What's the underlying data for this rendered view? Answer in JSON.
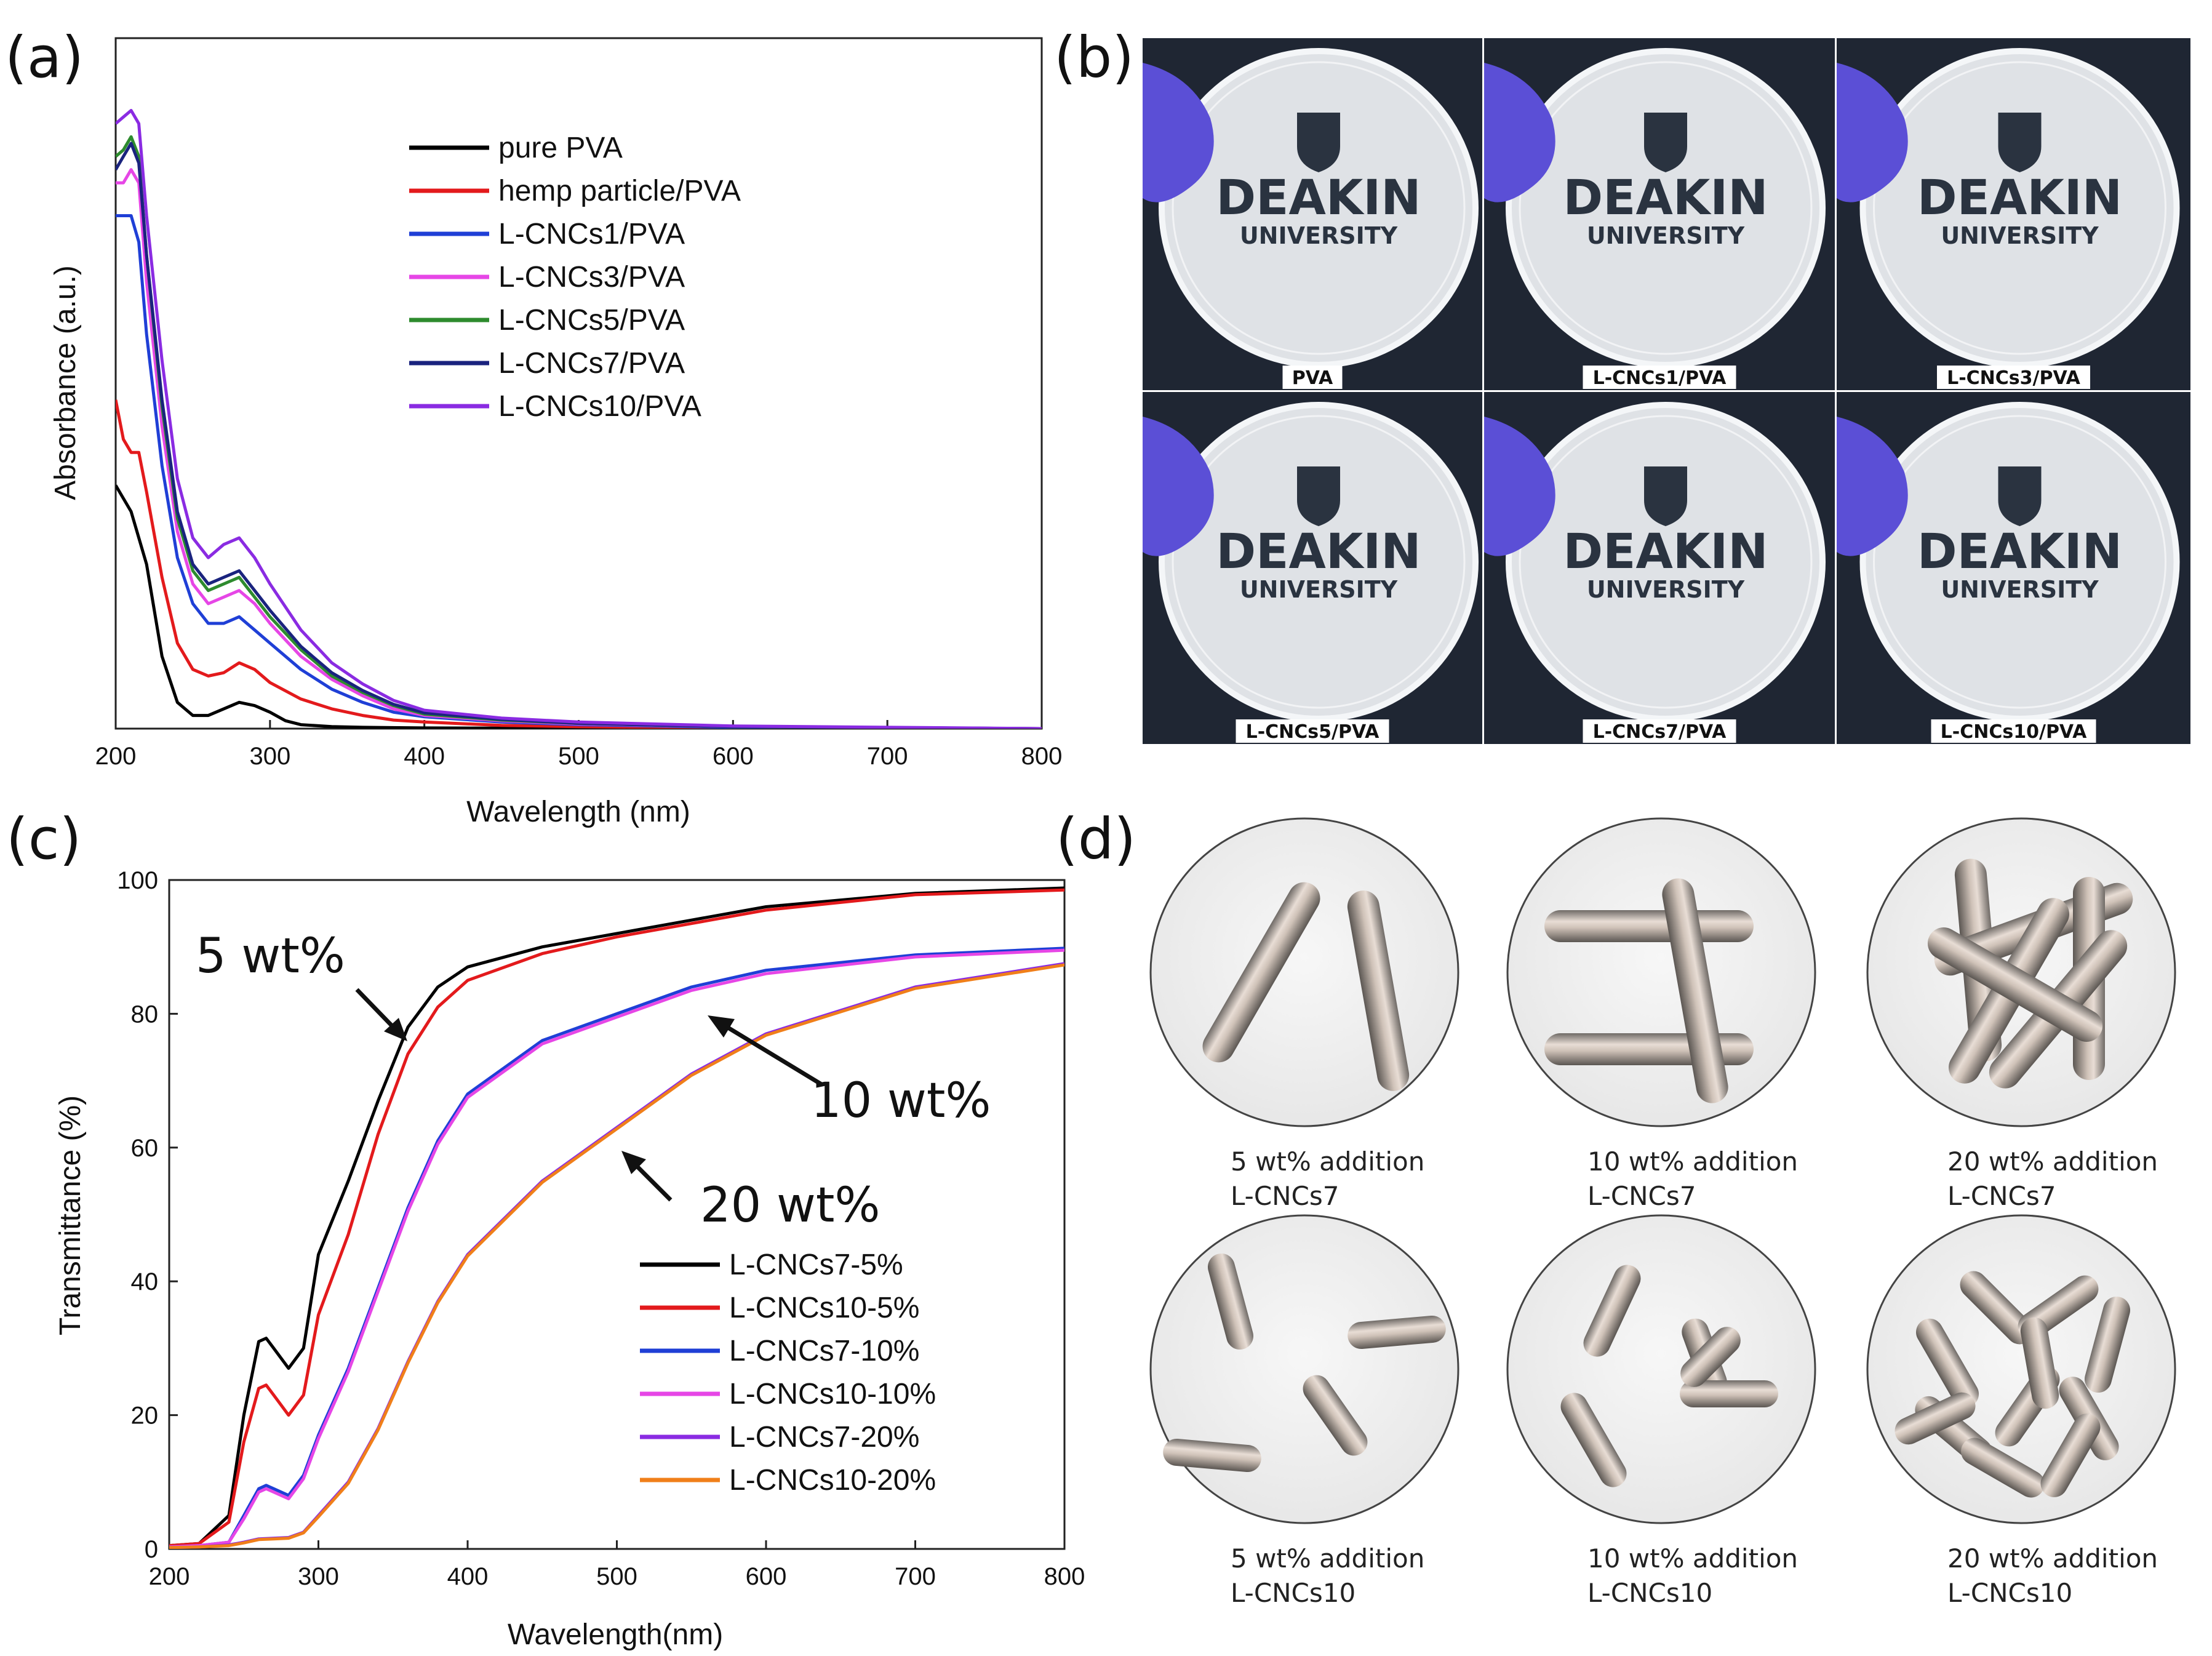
{
  "panels": {
    "a": "(a)",
    "b": "(b)",
    "c": "(c)",
    "d": "(d)"
  },
  "chart_data": [
    {
      "type": "line",
      "title": "",
      "xlabel": "Wavelength (nm)",
      "ylabel": "Absorbance (a.u.)",
      "xlim": [
        200,
        800
      ],
      "ylim": [
        0,
        1.05
      ],
      "xticks": [
        200,
        300,
        400,
        500,
        600,
        700,
        800
      ],
      "legend_position": "top-right",
      "series": [
        {
          "name": "pure PVA",
          "color": "#000000",
          "x": [
            200,
            210,
            220,
            230,
            240,
            250,
            260,
            270,
            280,
            290,
            300,
            310,
            320,
            340,
            360,
            400,
            500,
            800
          ],
          "y": [
            0.37,
            0.33,
            0.25,
            0.11,
            0.04,
            0.02,
            0.02,
            0.03,
            0.04,
            0.035,
            0.025,
            0.012,
            0.006,
            0.003,
            0.002,
            0.001,
            0.0005,
            0.0
          ]
        },
        {
          "name": "hemp particle/PVA",
          "color": "#e31a1c",
          "x": [
            200,
            205,
            210,
            215,
            220,
            230,
            240,
            250,
            260,
            270,
            280,
            290,
            300,
            320,
            340,
            360,
            380,
            400,
            450,
            500,
            600,
            800
          ],
          "y": [
            0.5,
            0.44,
            0.42,
            0.42,
            0.36,
            0.23,
            0.13,
            0.09,
            0.08,
            0.085,
            0.1,
            0.09,
            0.07,
            0.045,
            0.03,
            0.02,
            0.013,
            0.01,
            0.005,
            0.003,
            0.001,
            0.0
          ]
        },
        {
          "name": "L-CNCs1/PVA",
          "color": "#1f3fd6",
          "x": [
            200,
            205,
            210,
            215,
            220,
            230,
            240,
            250,
            260,
            270,
            280,
            290,
            300,
            320,
            340,
            360,
            380,
            400,
            450,
            500,
            600,
            800
          ],
          "y": [
            0.78,
            0.78,
            0.78,
            0.74,
            0.6,
            0.4,
            0.26,
            0.19,
            0.16,
            0.16,
            0.17,
            0.15,
            0.13,
            0.09,
            0.06,
            0.04,
            0.025,
            0.018,
            0.01,
            0.006,
            0.002,
            0.0
          ]
        },
        {
          "name": "L-CNCs3/PVA",
          "color": "#e646e6",
          "x": [
            200,
            205,
            210,
            215,
            220,
            230,
            240,
            250,
            260,
            270,
            280,
            290,
            300,
            320,
            340,
            360,
            380,
            400,
            450,
            500,
            600,
            800
          ],
          "y": [
            0.83,
            0.83,
            0.85,
            0.83,
            0.68,
            0.46,
            0.3,
            0.22,
            0.19,
            0.2,
            0.21,
            0.19,
            0.16,
            0.11,
            0.075,
            0.05,
            0.03,
            0.02,
            0.012,
            0.007,
            0.003,
            0.0
          ]
        },
        {
          "name": "L-CNCs5/PVA",
          "color": "#2e8b2e",
          "x": [
            200,
            205,
            210,
            215,
            220,
            230,
            240,
            250,
            260,
            270,
            280,
            290,
            300,
            320,
            340,
            360,
            380,
            400,
            450,
            500,
            600,
            800
          ],
          "y": [
            0.87,
            0.88,
            0.9,
            0.87,
            0.72,
            0.49,
            0.32,
            0.24,
            0.21,
            0.22,
            0.23,
            0.2,
            0.17,
            0.12,
            0.08,
            0.055,
            0.035,
            0.022,
            0.013,
            0.008,
            0.003,
            0.0
          ]
        },
        {
          "name": "L-CNCs7/PVA",
          "color": "#1a237e",
          "x": [
            200,
            205,
            210,
            215,
            220,
            230,
            240,
            250,
            260,
            270,
            280,
            290,
            300,
            320,
            340,
            360,
            380,
            400,
            450,
            500,
            600,
            800
          ],
          "y": [
            0.85,
            0.87,
            0.89,
            0.86,
            0.72,
            0.5,
            0.33,
            0.25,
            0.22,
            0.23,
            0.24,
            0.21,
            0.18,
            0.125,
            0.085,
            0.058,
            0.037,
            0.024,
            0.014,
            0.008,
            0.003,
            0.0
          ]
        },
        {
          "name": "L-CNCs10/PVA",
          "color": "#8a2be2",
          "x": [
            200,
            205,
            210,
            215,
            220,
            230,
            240,
            250,
            260,
            270,
            280,
            290,
            300,
            320,
            340,
            360,
            380,
            400,
            450,
            500,
            600,
            800
          ],
          "y": [
            0.92,
            0.93,
            0.94,
            0.92,
            0.78,
            0.56,
            0.38,
            0.29,
            0.26,
            0.28,
            0.29,
            0.26,
            0.22,
            0.15,
            0.1,
            0.068,
            0.043,
            0.028,
            0.016,
            0.01,
            0.004,
            0.0
          ]
        }
      ]
    },
    {
      "type": "line",
      "title": "",
      "xlabel": "Wavelength(nm)",
      "ylabel": "Transmittance (%)",
      "xlim": [
        200,
        800
      ],
      "ylim": [
        0,
        100
      ],
      "xticks": [
        200,
        300,
        400,
        500,
        600,
        700,
        800
      ],
      "yticks": [
        0,
        20,
        40,
        60,
        80,
        100
      ],
      "legend_position": "bottom-right",
      "annotations": [
        "5 wt%",
        "10 wt%",
        "20 wt%"
      ],
      "series": [
        {
          "name": "L-CNCs7-5%",
          "color": "#000000",
          "x": [
            200,
            220,
            240,
            250,
            260,
            265,
            270,
            280,
            290,
            300,
            320,
            340,
            360,
            380,
            400,
            450,
            500,
            550,
            600,
            700,
            800
          ],
          "y": [
            0.5,
            0.8,
            5,
            20,
            31,
            31.5,
            30,
            27,
            30,
            44,
            55,
            67,
            78,
            84,
            87,
            90,
            92,
            94,
            96,
            98,
            98.8
          ]
        },
        {
          "name": "L-CNCs10-5%",
          "color": "#e31a1c",
          "x": [
            200,
            220,
            240,
            250,
            260,
            265,
            270,
            280,
            290,
            300,
            320,
            340,
            360,
            380,
            400,
            450,
            500,
            550,
            600,
            700,
            800
          ],
          "y": [
            0.5,
            0.8,
            4,
            16,
            24,
            24.5,
            23,
            20,
            23,
            35,
            47,
            62,
            74,
            81,
            85,
            89,
            91.5,
            93.5,
            95.5,
            97.8,
            98.5
          ]
        },
        {
          "name": "L-CNCs7-10%",
          "color": "#1f3fd6",
          "x": [
            200,
            220,
            240,
            250,
            260,
            265,
            270,
            280,
            290,
            300,
            320,
            340,
            360,
            380,
            400,
            450,
            500,
            550,
            600,
            700,
            800
          ],
          "y": [
            0.3,
            0.5,
            1,
            5,
            9,
            9.5,
            9,
            8,
            11,
            17,
            27,
            39,
            51,
            61,
            68,
            76,
            80,
            84,
            86.5,
            88.8,
            89.8
          ]
        },
        {
          "name": "L-CNCs10-10%",
          "color": "#e646e6",
          "x": [
            200,
            220,
            240,
            250,
            260,
            265,
            270,
            280,
            290,
            300,
            320,
            340,
            360,
            380,
            400,
            450,
            500,
            550,
            600,
            700,
            800
          ],
          "y": [
            0.3,
            0.5,
            1,
            4.5,
            8.5,
            9,
            8.5,
            7.5,
            10.5,
            16.5,
            26.5,
            38.5,
            50.5,
            60.5,
            67.5,
            75.5,
            79.5,
            83.5,
            86,
            88.5,
            89.5
          ]
        },
        {
          "name": "L-CNCs7-20%",
          "color": "#8a2be2",
          "x": [
            200,
            220,
            240,
            250,
            260,
            270,
            280,
            290,
            300,
            320,
            340,
            360,
            380,
            400,
            450,
            500,
            550,
            600,
            700,
            800
          ],
          "y": [
            0.2,
            0.3,
            0.6,
            1,
            1.5,
            1.6,
            1.7,
            2.5,
            5,
            10,
            18,
            28,
            37,
            44,
            55,
            63,
            71,
            77,
            84,
            87.5
          ]
        },
        {
          "name": "L-CNCs10-20%",
          "color": "#f07f1a",
          "x": [
            200,
            220,
            240,
            250,
            260,
            270,
            280,
            290,
            300,
            320,
            340,
            360,
            380,
            400,
            450,
            500,
            550,
            600,
            700,
            800
          ],
          "y": [
            0.2,
            0.3,
            0.5,
            0.9,
            1.4,
            1.5,
            1.6,
            2.4,
            4.8,
            9.8,
            17.8,
            27.8,
            36.8,
            43.8,
            54.8,
            62.8,
            70.8,
            76.8,
            83.8,
            87.3
          ]
        }
      ]
    }
  ],
  "photos": {
    "logo_word1": "DEAKIN",
    "logo_word2": "UNIVERSITY",
    "captions": [
      "PVA",
      "L-CNCs1/PVA",
      "L-CNCs3/PVA",
      "L-CNCs5/PVA",
      "L-CNCs7/PVA",
      "L-CNCs10/PVA"
    ]
  },
  "schematics": [
    {
      "line1": "5 wt% addition",
      "line2": "L-CNCs7"
    },
    {
      "line1": "10 wt% addition",
      "line2": "L-CNCs7"
    },
    {
      "line1": "20 wt% addition",
      "line2": "L-CNCs7"
    },
    {
      "line1": "5 wt% addition",
      "line2": "L-CNCs10"
    },
    {
      "line1": "10 wt% addition",
      "line2": "L-CNCs10"
    },
    {
      "line1": "20 wt% addition",
      "line2": "L-CNCs10"
    }
  ]
}
